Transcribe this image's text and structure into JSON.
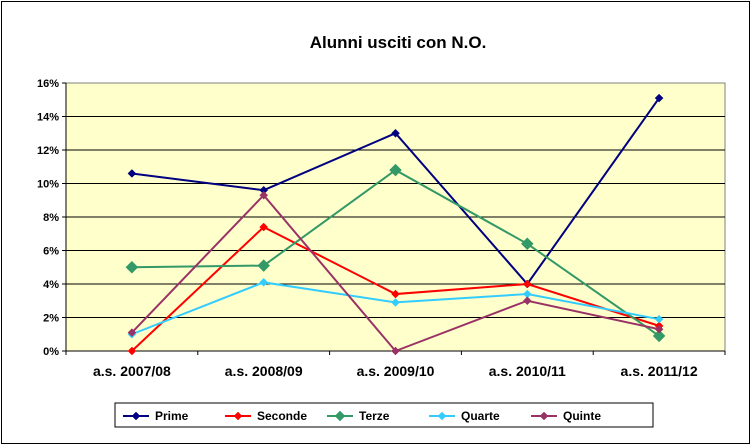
{
  "chart_data": {
    "type": "line",
    "title": "Alunni usciti con N.O.",
    "categories": [
      "a.s. 2007/08",
      "a.s. 2008/09",
      "a.s. 2009/10",
      "a.s. 2010/11",
      "a.s. 2011/12"
    ],
    "ylim": [
      0,
      16
    ],
    "yticks": [
      "0%",
      "2%",
      "4%",
      "6%",
      "8%",
      "10%",
      "12%",
      "14%",
      "16%"
    ],
    "grid": true,
    "legend_position": "bottom",
    "plot_background": "#ffffcc",
    "series": [
      {
        "name": "Prime",
        "color": "#000080",
        "marker": "diamond",
        "values": [
          10.6,
          9.6,
          13.0,
          4.0,
          15.1
        ]
      },
      {
        "name": "Seconde",
        "color": "#ff0000",
        "marker": "diamond",
        "values": [
          0.0,
          7.4,
          3.4,
          4.0,
          1.5
        ]
      },
      {
        "name": "Terze",
        "color": "#339966",
        "marker": "diamond-large",
        "values": [
          5.0,
          5.1,
          10.8,
          6.4,
          0.9
        ]
      },
      {
        "name": "Quarte",
        "color": "#33ccff",
        "marker": "diamond",
        "values": [
          1.0,
          4.1,
          2.9,
          3.4,
          1.9
        ]
      },
      {
        "name": "Quinte",
        "color": "#993366",
        "marker": "diamond",
        "values": [
          1.1,
          9.3,
          0.0,
          3.0,
          1.3
        ]
      }
    ]
  }
}
